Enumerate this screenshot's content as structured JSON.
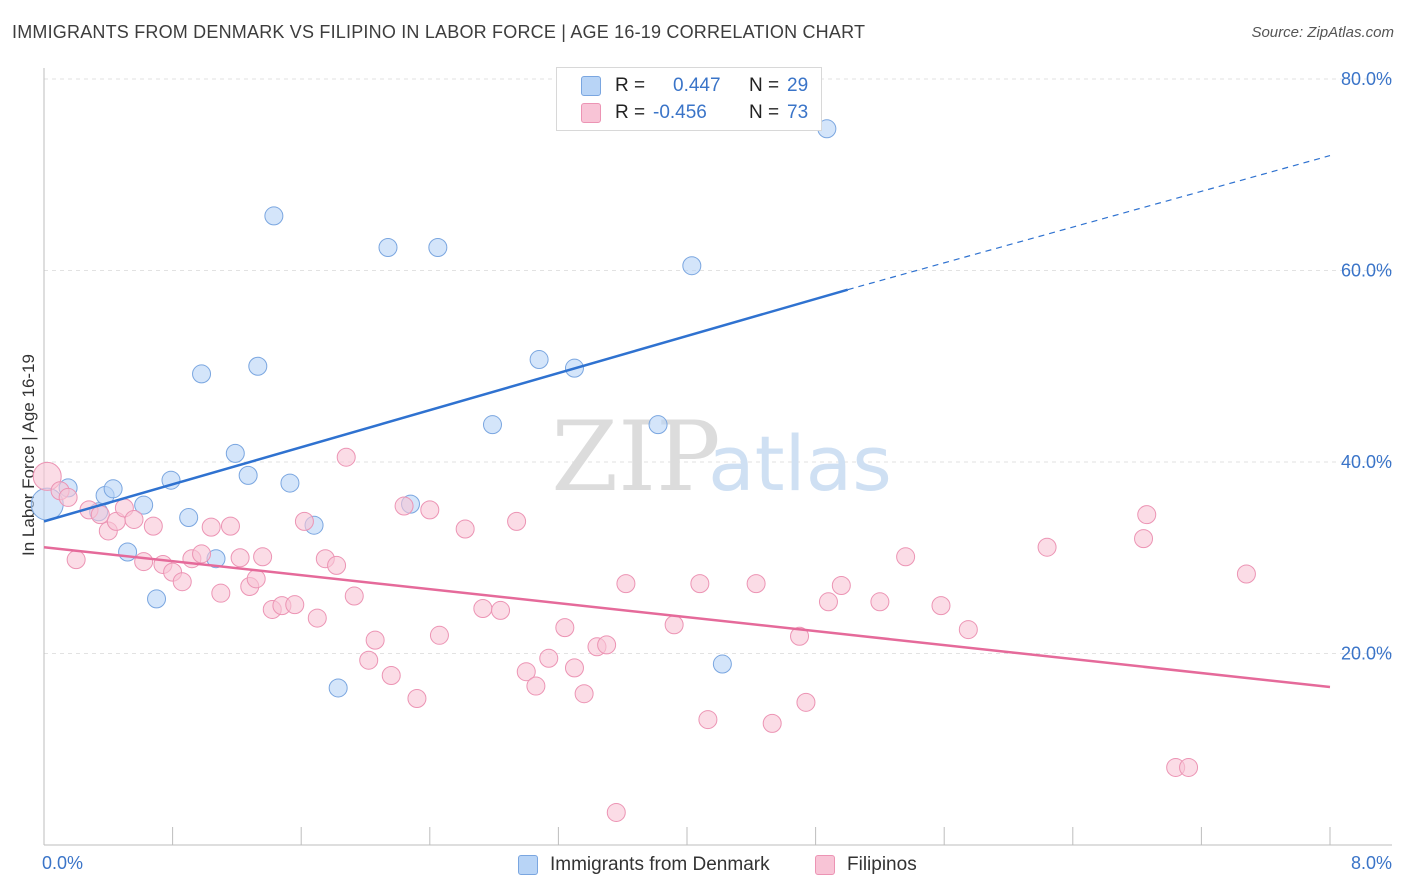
{
  "title": "IMMIGRANTS FROM DENMARK VS FILIPINO IN LABOR FORCE | AGE 16-19 CORRELATION CHART",
  "source": "Source: ZipAtlas.com",
  "watermark": {
    "zip": "ZIP",
    "atlas": "atlas"
  },
  "legend": {
    "rows": [
      {
        "r_label": "R =",
        "r_value": "0.447",
        "n_label": "N =",
        "n_value": "29"
      },
      {
        "r_label": "R =",
        "r_value": "-0.456",
        "n_label": "N =",
        "n_value": "73"
      }
    ]
  },
  "colors": {
    "denmark_fill": "#b8d4f6",
    "denmark_stroke": "#7aa6e0",
    "denmark_line": "#2f72d0",
    "filipino_fill": "#f8c4d6",
    "filipino_stroke": "#ec94b4",
    "filipino_line": "#e56a9a",
    "grid": "#e2e2e2",
    "tick_text": "#3a74c8"
  },
  "chart_data": {
    "type": "scatter",
    "xlabel": "",
    "ylabel": "In Labor Force | Age 16-19",
    "xlim": [
      0,
      8
    ],
    "ylim": [
      0,
      80
    ],
    "x_ticks": [
      "0.0%",
      "8.0%"
    ],
    "y_ticks": [
      {
        "value": 20,
        "label": "20.0%"
      },
      {
        "value": 40,
        "label": "40.0%"
      },
      {
        "value": 60,
        "label": "60.0%"
      },
      {
        "value": 80,
        "label": "80.0%"
      }
    ],
    "grid": true,
    "series": [
      {
        "name": "Immigrants from Denmark",
        "points": [
          [
            0.02,
            35.6
          ],
          [
            0.15,
            37.3
          ],
          [
            0.34,
            34.8
          ],
          [
            0.38,
            36.5
          ],
          [
            0.43,
            37.2
          ],
          [
            0.52,
            30.6
          ],
          [
            0.62,
            35.5
          ],
          [
            0.7,
            25.7
          ],
          [
            0.79,
            38.1
          ],
          [
            0.9,
            34.2
          ],
          [
            0.98,
            49.2
          ],
          [
            1.07,
            29.9
          ],
          [
            1.19,
            40.9
          ],
          [
            1.27,
            38.6
          ],
          [
            1.33,
            50.0
          ],
          [
            1.43,
            65.7
          ],
          [
            1.53,
            37.8
          ],
          [
            1.68,
            33.4
          ],
          [
            1.83,
            16.4
          ],
          [
            2.14,
            62.4
          ],
          [
            2.28,
            35.6
          ],
          [
            2.45,
            62.4
          ],
          [
            2.79,
            43.9
          ],
          [
            3.08,
            50.7
          ],
          [
            3.3,
            49.8
          ],
          [
            3.82,
            43.9
          ],
          [
            4.03,
            60.5
          ],
          [
            4.22,
            18.9
          ],
          [
            4.87,
            74.8
          ]
        ],
        "trend": {
          "x": [
            0.0,
            5.0
          ],
          "y": [
            33.8,
            58.0
          ],
          "dashed_extension": {
            "x": [
              5.0,
              8.0
            ],
            "y": [
              58.0,
              72.0
            ]
          }
        }
      },
      {
        "name": "Filipinos",
        "points": [
          [
            0.02,
            38.5
          ],
          [
            0.1,
            37.0
          ],
          [
            0.15,
            36.3
          ],
          [
            0.2,
            29.8
          ],
          [
            0.28,
            35.0
          ],
          [
            0.35,
            34.5
          ],
          [
            0.4,
            32.8
          ],
          [
            0.45,
            33.8
          ],
          [
            0.5,
            35.2
          ],
          [
            0.56,
            34.0
          ],
          [
            0.62,
            29.6
          ],
          [
            0.68,
            33.3
          ],
          [
            0.74,
            29.3
          ],
          [
            0.8,
            28.5
          ],
          [
            0.86,
            27.5
          ],
          [
            0.92,
            29.9
          ],
          [
            0.98,
            30.4
          ],
          [
            1.04,
            33.2
          ],
          [
            1.1,
            26.3
          ],
          [
            1.16,
            33.3
          ],
          [
            1.22,
            30.0
          ],
          [
            1.28,
            27.0
          ],
          [
            1.32,
            27.8
          ],
          [
            1.36,
            30.1
          ],
          [
            1.42,
            24.6
          ],
          [
            1.48,
            25.0
          ],
          [
            1.56,
            25.1
          ],
          [
            1.62,
            33.8
          ],
          [
            1.7,
            23.7
          ],
          [
            1.75,
            29.9
          ],
          [
            1.82,
            29.2
          ],
          [
            1.88,
            40.5
          ],
          [
            1.93,
            26.0
          ],
          [
            2.02,
            19.3
          ],
          [
            2.06,
            21.4
          ],
          [
            2.16,
            17.7
          ],
          [
            2.24,
            35.4
          ],
          [
            2.32,
            15.3
          ],
          [
            2.4,
            35.0
          ],
          [
            2.46,
            21.9
          ],
          [
            2.62,
            33.0
          ],
          [
            2.73,
            24.7
          ],
          [
            2.84,
            24.5
          ],
          [
            2.94,
            33.8
          ],
          [
            3.0,
            18.1
          ],
          [
            3.06,
            16.6
          ],
          [
            3.14,
            19.5
          ],
          [
            3.24,
            22.7
          ],
          [
            3.3,
            18.5
          ],
          [
            3.36,
            15.8
          ],
          [
            3.44,
            20.7
          ],
          [
            3.5,
            20.9
          ],
          [
            3.56,
            3.4
          ],
          [
            3.62,
            27.3
          ],
          [
            3.92,
            23.0
          ],
          [
            4.08,
            27.3
          ],
          [
            4.13,
            13.1
          ],
          [
            4.43,
            27.3
          ],
          [
            4.53,
            12.7
          ],
          [
            4.7,
            21.8
          ],
          [
            4.74,
            14.9
          ],
          [
            4.88,
            25.4
          ],
          [
            4.96,
            27.1
          ],
          [
            5.2,
            25.4
          ],
          [
            5.36,
            30.1
          ],
          [
            5.58,
            25.0
          ],
          [
            5.75,
            22.5
          ],
          [
            6.24,
            31.1
          ],
          [
            6.84,
            32.0
          ],
          [
            6.86,
            34.5
          ],
          [
            7.04,
            8.1
          ],
          [
            7.12,
            8.1
          ],
          [
            7.48,
            28.3
          ]
        ],
        "trend": {
          "x": [
            0.0,
            8.0
          ],
          "y": [
            31.1,
            16.5
          ]
        }
      }
    ]
  }
}
